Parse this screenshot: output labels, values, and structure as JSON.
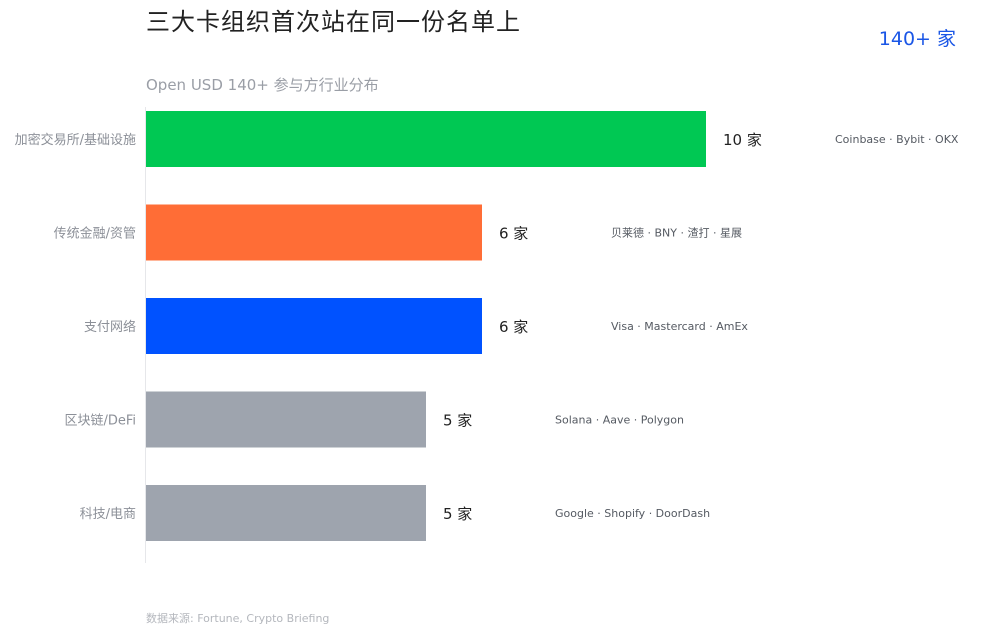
{
  "header": {
    "title": "三大卡组织首次站在同一份名单上",
    "badge": "140+ 家",
    "subtitle": "Open USD 140+ 参与方行业分布"
  },
  "footer": {
    "source": "数据来源: Fortune, Crypto Briefing"
  },
  "chart_data": {
    "type": "bar",
    "orientation": "horizontal",
    "categories": [
      "加密交易所/基础设施",
      "传统金融/资管",
      "支付网络",
      "区块链/DeFi",
      "科技/电商"
    ],
    "values": [
      10,
      6,
      6,
      5,
      5
    ],
    "value_labels": [
      "10 家",
      "6 家",
      "6 家",
      "5 家",
      "5 家"
    ],
    "annotations": [
      "Coinbase · Bybit · OKX",
      "贝莱德 · BNY · 渣打 · 星展",
      "Visa · Mastercard · AmEx",
      "Solana · Aave · Polygon",
      "Google · Shopify · DoorDash"
    ],
    "colors": [
      "#00c853",
      "#ff6d36",
      "#0052ff",
      "#9ea4ae",
      "#9ea4ae"
    ],
    "xlim": [
      0,
      10
    ],
    "grid": false,
    "legend": "none"
  }
}
